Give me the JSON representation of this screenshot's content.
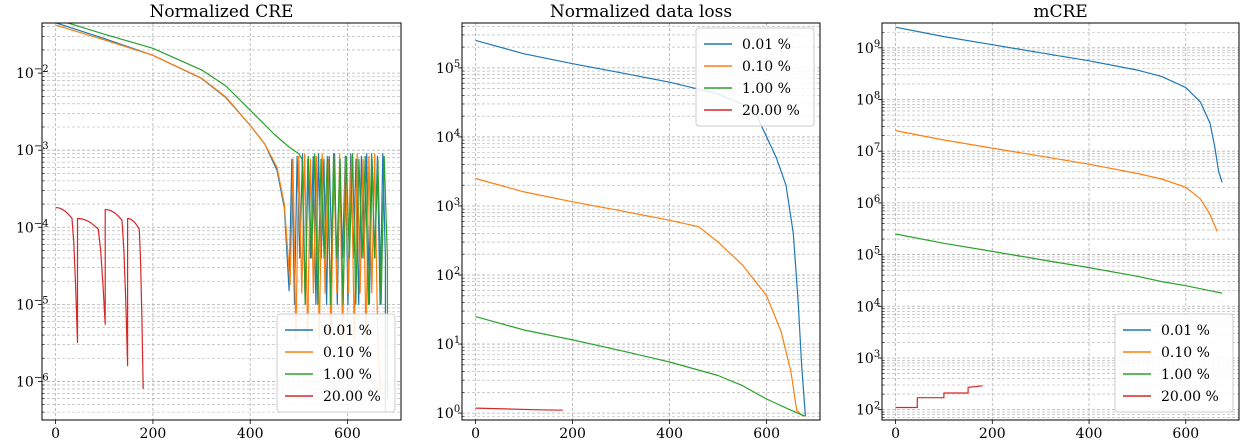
{
  "figure": {
    "background": "#ffffff",
    "series_colors": {
      "0.01 %": "#1f77b4",
      "0.10 %": "#ff7f0e",
      "1.00 %": "#2ca02c",
      "20.00 %": "#d62728"
    }
  },
  "chart_data": [
    {
      "type": "line",
      "title": "Normalized CRE",
      "xlabel": "",
      "ylabel": "",
      "yscale": "log",
      "xlim": [
        -28,
        710
      ],
      "ylim_exp": [
        -6.5,
        -1.35
      ],
      "x_ticks": [
        0,
        200,
        400,
        600
      ],
      "y_ticks": [
        {
          "exp": -2,
          "label": "10",
          "sup": "−2"
        },
        {
          "exp": -3,
          "label": "10",
          "sup": "−3"
        },
        {
          "exp": -4,
          "label": "10",
          "sup": "−4"
        },
        {
          "exp": -5,
          "label": "10",
          "sup": "−5"
        },
        {
          "exp": -6,
          "label": "10",
          "sup": "−6"
        }
      ],
      "grid": true,
      "legend": "lower-right",
      "series": [
        {
          "name": "0.01 %",
          "color": "#1f77b4",
          "style": "oscillating",
          "points": [
            [
              0,
              0.045
            ],
            [
              100,
              0.028
            ],
            [
              200,
              0.017
            ],
            [
              300,
              0.0085
            ],
            [
              350,
              0.0048
            ],
            [
              400,
              0.0021
            ],
            [
              430,
              0.0012
            ],
            [
              455,
              0.00055
            ],
            [
              470,
              0.00018
            ],
            [
              480,
              1.5e-05
            ]
          ],
          "osc_start": 480,
          "osc_end": 678,
          "osc_step": 11,
          "osc_peak": 0.0009,
          "osc_min": 1e-05,
          "end_value": 4e-07
        },
        {
          "name": "0.10 %",
          "color": "#ff7f0e",
          "style": "oscillating",
          "points": [
            [
              0,
              0.042
            ],
            [
              100,
              0.027
            ],
            [
              200,
              0.017
            ],
            [
              300,
              0.0086
            ],
            [
              350,
              0.0049
            ],
            [
              400,
              0.0021
            ],
            [
              430,
              0.0012
            ],
            [
              455,
              0.0006
            ],
            [
              470,
              0.0002
            ],
            [
              482,
              1.8e-05
            ]
          ],
          "osc_start": 482,
          "osc_end": 668,
          "osc_step": 12,
          "osc_peak": 0.0009,
          "osc_min": 3.5e-06,
          "end_value": 7e-07
        },
        {
          "name": "1.00 %",
          "color": "#2ca02c",
          "style": "oscillating",
          "points": [
            [
              0,
              0.05
            ],
            [
              100,
              0.032
            ],
            [
              200,
              0.021
            ],
            [
              300,
              0.011
            ],
            [
              350,
              0.0068
            ],
            [
              400,
              0.0033
            ],
            [
              450,
              0.0016
            ],
            [
              480,
              0.0011
            ],
            [
              500,
              0.0009
            ]
          ],
          "osc_start": 500,
          "osc_end": 682,
          "osc_step": 13,
          "osc_peak": 0.0009,
          "osc_min": 1e-05,
          "end_value": 6e-07
        },
        {
          "name": "20.00 %",
          "color": "#d62728",
          "style": "arches",
          "arches": [
            [
              0,
              45,
              0.00018,
              3.2e-06
            ],
            [
              45,
              102,
              0.00013,
              5.5e-06
            ],
            [
              102,
              148,
              0.00017,
              1.6e-06
            ],
            [
              148,
              180,
              0.00013,
              8e-07
            ]
          ]
        }
      ]
    },
    {
      "type": "line",
      "title": "Normalized data loss",
      "xlabel": "",
      "ylabel": "",
      "yscale": "log",
      "xlim": [
        -28,
        710
      ],
      "ylim_exp": [
        -0.1,
        5.65
      ],
      "x_ticks": [
        0,
        200,
        400,
        600
      ],
      "y_ticks": [
        {
          "exp": 0,
          "label": "10",
          "sup": "0"
        },
        {
          "exp": 1,
          "label": "10",
          "sup": "1"
        },
        {
          "exp": 2,
          "label": "10",
          "sup": "2"
        },
        {
          "exp": 3,
          "label": "10",
          "sup": "3"
        },
        {
          "exp": 4,
          "label": "10",
          "sup": "4"
        },
        {
          "exp": 5,
          "label": "10",
          "sup": "5"
        }
      ],
      "grid": true,
      "legend": "upper-right",
      "series": [
        {
          "name": "0.01 %",
          "color": "#1f77b4",
          "style": "plain",
          "points": [
            [
              0,
              250000
            ],
            [
              100,
              160000
            ],
            [
              200,
              115000
            ],
            [
              300,
              85000
            ],
            [
              400,
              62000
            ],
            [
              500,
              42000
            ],
            [
              550,
              30000
            ],
            [
              580,
              20000
            ],
            [
              600,
              10000
            ],
            [
              620,
              5000
            ],
            [
              640,
              2000
            ],
            [
              655,
              400
            ],
            [
              665,
              40
            ],
            [
              672,
              5
            ],
            [
              680,
              0.9
            ]
          ]
        },
        {
          "name": "0.10 %",
          "color": "#ff7f0e",
          "style": "plain",
          "points": [
            [
              0,
              2500
            ],
            [
              100,
              1600
            ],
            [
              200,
              1150
            ],
            [
              300,
              850
            ],
            [
              400,
              620
            ],
            [
              460,
              500
            ],
            [
              500,
              300
            ],
            [
              550,
              140
            ],
            [
              600,
              50
            ],
            [
              630,
              15
            ],
            [
              650,
              4
            ],
            [
              662,
              1.1
            ],
            [
              675,
              0.9
            ]
          ]
        },
        {
          "name": "1.00 %",
          "color": "#2ca02c",
          "style": "plain",
          "points": [
            [
              0,
              25
            ],
            [
              100,
              16
            ],
            [
              200,
              11.5
            ],
            [
              300,
              8
            ],
            [
              400,
              5.5
            ],
            [
              500,
              3.5
            ],
            [
              550,
              2.5
            ],
            [
              600,
              1.6
            ],
            [
              650,
              1.1
            ],
            [
              680,
              0.9
            ]
          ]
        },
        {
          "name": "20.00 %",
          "color": "#d62728",
          "style": "plain",
          "points": [
            [
              0,
              1.18
            ],
            [
              60,
              1.15
            ],
            [
              120,
              1.12
            ],
            [
              180,
              1.1
            ]
          ]
        }
      ]
    },
    {
      "type": "line",
      "title": "mCRE",
      "xlabel": "",
      "ylabel": "",
      "yscale": "log",
      "xlim": [
        -28,
        710
      ],
      "ylim_exp": [
        1.8,
        9.48
      ],
      "x_ticks": [
        0,
        200,
        400,
        600
      ],
      "y_ticks": [
        {
          "exp": 2,
          "label": "10",
          "sup": "2"
        },
        {
          "exp": 3,
          "label": "10",
          "sup": "3"
        },
        {
          "exp": 4,
          "label": "10",
          "sup": "4"
        },
        {
          "exp": 5,
          "label": "10",
          "sup": "5"
        },
        {
          "exp": 6,
          "label": "10",
          "sup": "6"
        },
        {
          "exp": 7,
          "label": "10",
          "sup": "7"
        },
        {
          "exp": 8,
          "label": "10",
          "sup": "8"
        },
        {
          "exp": 9,
          "label": "10",
          "sup": "9"
        }
      ],
      "grid": true,
      "legend": "lower-right",
      "series": [
        {
          "name": "0.01 %",
          "color": "#1f77b4",
          "style": "plain",
          "points": [
            [
              0,
              2500000000
            ],
            [
              100,
              1650000000
            ],
            [
              200,
              1150000000
            ],
            [
              300,
              800000000
            ],
            [
              400,
              560000000
            ],
            [
              500,
              370000000
            ],
            [
              550,
              280000000
            ],
            [
              600,
              170000000
            ],
            [
              630,
              90000000
            ],
            [
              650,
              35000000
            ],
            [
              660,
              12000000
            ],
            [
              668,
              4000000
            ],
            [
              675,
              2500000
            ]
          ]
        },
        {
          "name": "0.10 %",
          "color": "#ff7f0e",
          "style": "plain",
          "points": [
            [
              0,
              25000000
            ],
            [
              100,
              16500000
            ],
            [
              200,
              11500000
            ],
            [
              300,
              8000000
            ],
            [
              400,
              5600000
            ],
            [
              500,
              3700000
            ],
            [
              550,
              2900000
            ],
            [
              600,
              2000000
            ],
            [
              630,
              1200000
            ],
            [
              650,
              600000
            ],
            [
              665,
              280000
            ]
          ]
        },
        {
          "name": "1.00 %",
          "color": "#2ca02c",
          "style": "plain",
          "points": [
            [
              0,
              250000
            ],
            [
              100,
              165000
            ],
            [
              200,
              115000
            ],
            [
              300,
              80000
            ],
            [
              400,
              56000
            ],
            [
              500,
              38000
            ],
            [
              550,
              30000
            ],
            [
              600,
              25000
            ],
            [
              650,
              20000
            ],
            [
              675,
              18000
            ]
          ]
        },
        {
          "name": "20.00 %",
          "color": "#d62728",
          "style": "steps",
          "points": [
            [
              0,
              110
            ],
            [
              45,
              110
            ],
            [
              45,
              170
            ],
            [
              100,
              170
            ],
            [
              100,
              210
            ],
            [
              150,
              210
            ],
            [
              150,
              270
            ],
            [
              180,
              290
            ]
          ]
        }
      ]
    }
  ]
}
